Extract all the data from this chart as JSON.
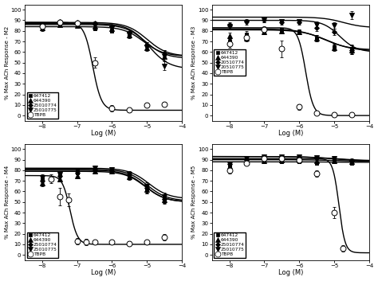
{
  "subplots": [
    {
      "ylabel": "% Max ACh Response - M2",
      "xlabel": "Log (M)",
      "xlim": [
        -8.5,
        -4.0
      ],
      "ylim": [
        -5,
        105
      ],
      "xticks": [
        -8,
        -7,
        -6,
        -5,
        -4
      ],
      "yticks": [
        0,
        10,
        20,
        30,
        40,
        50,
        60,
        70,
        80,
        90,
        100
      ],
      "legend_labels": [
        "647412",
        "644390",
        "25010774",
        "25010775",
        "TBPB"
      ],
      "legend_markers": [
        "s",
        "^",
        "D",
        "v",
        "o"
      ],
      "legend_filled": [
        true,
        true,
        true,
        true,
        false
      ],
      "series": [
        {
          "name": "647412",
          "marker": "s",
          "filled": true,
          "markersize": 3.5,
          "x": [
            -8.0,
            -7.5,
            -7.0,
            -6.5,
            -6.0,
            -5.5,
            -5.0,
            -4.5
          ],
          "y": [
            82,
            85,
            84,
            82,
            80,
            77,
            66,
            58
          ],
          "yerr": [
            2,
            1.5,
            1.5,
            1.5,
            2,
            3,
            3,
            4
          ],
          "curve": {
            "top": 84,
            "bottom": 56,
            "ic50": -5.1,
            "hill": 1.5
          }
        },
        {
          "name": "644390",
          "marker": "^",
          "filled": true,
          "markersize": 4,
          "x": [
            -8.0,
            -7.5,
            -7.0,
            -6.5,
            -6.0,
            -5.5,
            -5.0,
            -4.5
          ],
          "y": [
            83,
            86,
            85,
            84,
            82,
            76,
            64,
            56
          ],
          "yerr": [
            2,
            1.5,
            1.5,
            1.5,
            2,
            3,
            3,
            4
          ],
          "curve": {
            "top": 86,
            "bottom": 54,
            "ic50": -5.05,
            "hill": 1.5
          }
        },
        {
          "name": "25010774",
          "marker": "D",
          "filled": true,
          "markersize": 3,
          "x": [
            -8.0,
            -7.5,
            -7.0,
            -6.5,
            -6.0,
            -5.5,
            -5.0,
            -4.5
          ],
          "y": [
            85,
            89,
            88,
            87,
            84,
            78,
            66,
            58
          ],
          "yerr": [
            2,
            1.5,
            1.5,
            1.5,
            2,
            3,
            3,
            4
          ],
          "curve": {
            "top": 88,
            "bottom": 56,
            "ic50": -5.0,
            "hill": 1.5
          }
        },
        {
          "name": "25010775",
          "marker": "v",
          "filled": true,
          "markersize": 4,
          "x": [
            -8.0,
            -7.5,
            -7.0,
            -6.5,
            -6.0,
            -5.5,
            -5.0,
            -4.5
          ],
          "y": [
            84,
            87,
            86,
            85,
            83,
            77,
            65,
            47
          ],
          "yerr": [
            2,
            1.5,
            1.5,
            1.5,
            2,
            3,
            3,
            4
          ],
          "curve": {
            "top": 87,
            "bottom": 44,
            "ic50": -4.95,
            "hill": 1.5
          }
        },
        {
          "name": "TBPB",
          "marker": "o",
          "filled": false,
          "markersize": 5,
          "x": [
            -8.0,
            -7.5,
            -7.0,
            -6.5,
            -6.0,
            -5.5,
            -5.0,
            -4.5
          ],
          "y": [
            84,
            88,
            87,
            50,
            7,
            5,
            10,
            11
          ],
          "yerr": [
            2,
            2,
            2,
            5,
            3,
            2,
            2,
            2
          ],
          "curve": {
            "top": 88,
            "bottom": 5,
            "ic50": -6.55,
            "hill": 3.5
          }
        }
      ]
    },
    {
      "ylabel": "% Max ACh Response - M3",
      "xlabel": "Log (M)",
      "xlim": [
        -8.5,
        -4.0
      ],
      "ylim": [
        -5,
        105
      ],
      "xticks": [
        -8,
        -7,
        -6,
        -5,
        -4
      ],
      "yticks": [
        0,
        10,
        20,
        30,
        40,
        50,
        60,
        70,
        80,
        90,
        100
      ],
      "legend_labels": [
        "647412",
        "644390",
        "20510774",
        "20510775",
        "TBPB"
      ],
      "legend_markers": [
        "s",
        "^",
        "D",
        "v",
        "o"
      ],
      "legend_filled": [
        true,
        true,
        true,
        true,
        false
      ],
      "series": [
        {
          "name": "647412",
          "marker": "s",
          "filled": true,
          "markersize": 3.5,
          "x": [
            -8.0,
            -7.5,
            -7.0,
            -6.5,
            -6.0,
            -5.5,
            -5.0,
            -4.5
          ],
          "y": [
            70,
            77,
            80,
            81,
            79,
            73,
            65,
            63
          ],
          "yerr": [
            3,
            3,
            2,
            2,
            2,
            3,
            3,
            4
          ],
          "curve": {
            "top": 82,
            "bottom": 62,
            "ic50": -5.3,
            "hill": 1.2
          }
        },
        {
          "name": "644390",
          "marker": "^",
          "filled": true,
          "markersize": 4,
          "x": [
            -8.0,
            -7.5,
            -7.0,
            -6.5,
            -6.0,
            -5.5,
            -5.0,
            -4.5
          ],
          "y": [
            75,
            73,
            79,
            80,
            79,
            73,
            64,
            62
          ],
          "yerr": [
            3,
            3,
            2,
            2,
            2,
            3,
            3,
            4
          ],
          "curve": {
            "top": 81,
            "bottom": 61,
            "ic50": -5.2,
            "hill": 1.2
          }
        },
        {
          "name": "20510774",
          "marker": "D",
          "filled": true,
          "markersize": 3,
          "x": [
            -8.0,
            -7.5,
            -7.0,
            -6.5,
            -6.0,
            -5.5,
            -5.0,
            -4.5
          ],
          "y": [
            85,
            89,
            90,
            88,
            88,
            83,
            79,
            62
          ],
          "yerr": [
            3,
            2,
            2,
            2,
            2,
            3,
            3,
            4
          ],
          "curve": {
            "top": 90,
            "bottom": 60,
            "ic50": -4.85,
            "hill": 1.8
          }
        },
        {
          "name": "20510775",
          "marker": "v",
          "filled": true,
          "markersize": 4,
          "x": [
            -8.0,
            -7.5,
            -7.0,
            -6.5,
            -6.0,
            -5.5,
            -5.0,
            -4.5
          ],
          "y": [
            84,
            88,
            90,
            89,
            89,
            86,
            85,
            95
          ],
          "yerr": [
            3,
            2,
            2,
            2,
            2,
            3,
            3,
            4
          ],
          "curve": {
            "top": 93,
            "bottom": 83,
            "ic50": -4.75,
            "hill": 1.5
          }
        },
        {
          "name": "TBPB",
          "marker": "o",
          "filled": false,
          "markersize": 5,
          "x": [
            -8.0,
            -7.5,
            -7.0,
            -6.5,
            -6.0,
            -5.5,
            -5.0,
            -4.5
          ],
          "y": [
            68,
            74,
            81,
            63,
            8,
            2,
            1,
            1
          ],
          "yerr": [
            4,
            3,
            3,
            8,
            3,
            1,
            1,
            1
          ],
          "curve": {
            "top": 83,
            "bottom": 0,
            "ic50": -5.82,
            "hill": 4.0
          }
        }
      ]
    },
    {
      "ylabel": "% Max ACh Response - M4",
      "xlabel": "Log (M)",
      "xlim": [
        -8.5,
        -4.0
      ],
      "ylim": [
        -5,
        105
      ],
      "xticks": [
        -8,
        -7,
        -6,
        -5,
        -4
      ],
      "yticks": [
        0,
        10,
        20,
        30,
        40,
        50,
        60,
        70,
        80,
        90,
        100
      ],
      "legend_labels": [
        "647412",
        "644390",
        "25010774",
        "25010775",
        "TBPB"
      ],
      "legend_markers": [
        "s",
        "^",
        "D",
        "v",
        "o"
      ],
      "legend_filled": [
        true,
        true,
        true,
        true,
        false
      ],
      "series": [
        {
          "name": "647412",
          "marker": "s",
          "filled": true,
          "markersize": 3.5,
          "x": [
            -8.0,
            -7.5,
            -7.0,
            -6.5,
            -6.0,
            -5.5,
            -5.0,
            -4.5
          ],
          "y": [
            72,
            76,
            78,
            80,
            79,
            75,
            62,
            53
          ],
          "yerr": [
            3,
            2,
            2,
            2,
            2,
            3,
            4,
            4
          ],
          "curve": {
            "top": 80,
            "bottom": 50,
            "ic50": -5.05,
            "hill": 1.5
          }
        },
        {
          "name": "644390",
          "marker": "^",
          "filled": true,
          "markersize": 4,
          "x": [
            -8.0,
            -7.5,
            -7.0,
            -6.5,
            -6.0,
            -5.5,
            -5.0,
            -4.5
          ],
          "y": [
            68,
            72,
            75,
            79,
            79,
            74,
            62,
            52
          ],
          "yerr": [
            3,
            2,
            2,
            2,
            2,
            3,
            4,
            4
          ],
          "curve": {
            "top": 79,
            "bottom": 50,
            "ic50": -5.05,
            "hill": 1.5
          }
        },
        {
          "name": "25010774",
          "marker": "D",
          "filled": true,
          "markersize": 3,
          "x": [
            -8.0,
            -7.5,
            -7.0,
            -6.5,
            -6.0,
            -5.5,
            -5.0,
            -4.5
          ],
          "y": [
            70,
            75,
            78,
            81,
            80,
            76,
            63,
            53
          ],
          "yerr": [
            3,
            2,
            2,
            2,
            2,
            3,
            4,
            4
          ],
          "curve": {
            "top": 81,
            "bottom": 51,
            "ic50": -5.0,
            "hill": 1.5
          }
        },
        {
          "name": "25010775",
          "marker": "v",
          "filled": true,
          "markersize": 4,
          "x": [
            -8.0,
            -7.5,
            -7.0,
            -6.5,
            -6.0,
            -5.5,
            -5.0,
            -4.5
          ],
          "y": [
            73,
            76,
            80,
            82,
            81,
            76,
            65,
            55
          ],
          "yerr": [
            3,
            2,
            2,
            2,
            2,
            3,
            4,
            4
          ],
          "curve": {
            "top": 82,
            "bottom": 53,
            "ic50": -4.95,
            "hill": 1.5
          }
        },
        {
          "name": "TBPB",
          "marker": "o",
          "filled": false,
          "markersize": 5,
          "x": [
            -7.75,
            -7.5,
            -7.25,
            -7.0,
            -6.75,
            -6.5,
            -6.0,
            -5.5,
            -5.0,
            -4.5
          ],
          "y": [
            72,
            55,
            52,
            13,
            12,
            12,
            12,
            11,
            12,
            17
          ],
          "yerr": [
            4,
            8,
            6,
            3,
            3,
            2,
            2,
            2,
            2,
            3
          ],
          "curve": {
            "top": 75,
            "bottom": 10,
            "ic50": -7.2,
            "hill": 4.0
          }
        }
      ]
    },
    {
      "ylabel": "% Max ACh Response - M5",
      "xlabel": "Log (M)",
      "xlim": [
        -8.5,
        -4.0
      ],
      "ylim": [
        -5,
        105
      ],
      "xticks": [
        -8,
        -7,
        -6,
        -5,
        -4
      ],
      "yticks": [
        0,
        10,
        20,
        30,
        40,
        50,
        60,
        70,
        80,
        90,
        100
      ],
      "legend_labels": [
        "647412",
        "644390",
        "25010774",
        "25010775",
        "TBPB"
      ],
      "legend_markers": [
        "s",
        "^",
        "D",
        "v",
        "o"
      ],
      "legend_filled": [
        true,
        true,
        true,
        true,
        false
      ],
      "series": [
        {
          "name": "647412",
          "marker": "s",
          "filled": true,
          "markersize": 3.5,
          "x": [
            -8.0,
            -7.5,
            -7.0,
            -6.5,
            -6.0,
            -5.5,
            -5.0,
            -4.5
          ],
          "y": [
            84,
            88,
            88,
            88,
            88,
            87,
            88,
            87
          ],
          "yerr": [
            2,
            1.5,
            1.5,
            1.5,
            1.5,
            1.5,
            1.5,
            2
          ],
          "curve": {
            "top": 88,
            "bottom": 87.5,
            "ic50": -5.0,
            "hill": 1.0
          }
        },
        {
          "name": "644390",
          "marker": "^",
          "filled": true,
          "markersize": 4,
          "x": [
            -8.0,
            -7.5,
            -7.0,
            -6.5,
            -6.0,
            -5.5,
            -5.0,
            -4.5
          ],
          "y": [
            84,
            88,
            89,
            90,
            90,
            89,
            89,
            88
          ],
          "yerr": [
            2,
            1.5,
            1.5,
            1.5,
            1.5,
            1.5,
            1.5,
            2
          ],
          "curve": {
            "top": 90,
            "bottom": 88.5,
            "ic50": -5.0,
            "hill": 1.0
          }
        },
        {
          "name": "25010774",
          "marker": "D",
          "filled": true,
          "markersize": 3,
          "x": [
            -8.0,
            -7.5,
            -7.0,
            -6.5,
            -6.0,
            -5.5,
            -5.0,
            -4.5
          ],
          "y": [
            86,
            90,
            93,
            92,
            92,
            92,
            91,
            89
          ],
          "yerr": [
            2,
            1.5,
            1.5,
            1.5,
            1.5,
            1.5,
            1.5,
            2
          ],
          "curve": {
            "top": 93,
            "bottom": 89,
            "ic50": -5.0,
            "hill": 1.0
          }
        },
        {
          "name": "25010775",
          "marker": "v",
          "filled": true,
          "markersize": 4,
          "x": [
            -8.0,
            -7.5,
            -7.0,
            -6.5,
            -6.0,
            -5.5,
            -5.0,
            -4.5
          ],
          "y": [
            86,
            91,
            93,
            93,
            93,
            92,
            91,
            88
          ],
          "yerr": [
            2,
            1.5,
            1.5,
            1.5,
            1.5,
            1.5,
            1.5,
            2
          ],
          "curve": {
            "top": 93,
            "bottom": 88.5,
            "ic50": -5.0,
            "hill": 1.0
          }
        },
        {
          "name": "TBPB",
          "marker": "o",
          "filled": false,
          "markersize": 5,
          "x": [
            -8.0,
            -7.5,
            -7.0,
            -6.5,
            -6.0,
            -5.5,
            -5.0,
            -4.75
          ],
          "y": [
            80,
            87,
            91,
            91,
            90,
            77,
            40,
            6
          ],
          "yerr": [
            3,
            2,
            2,
            2,
            2,
            3,
            5,
            3
          ],
          "curve": {
            "top": 91,
            "bottom": 2,
            "ic50": -4.87,
            "hill": 5.0
          }
        }
      ]
    }
  ]
}
